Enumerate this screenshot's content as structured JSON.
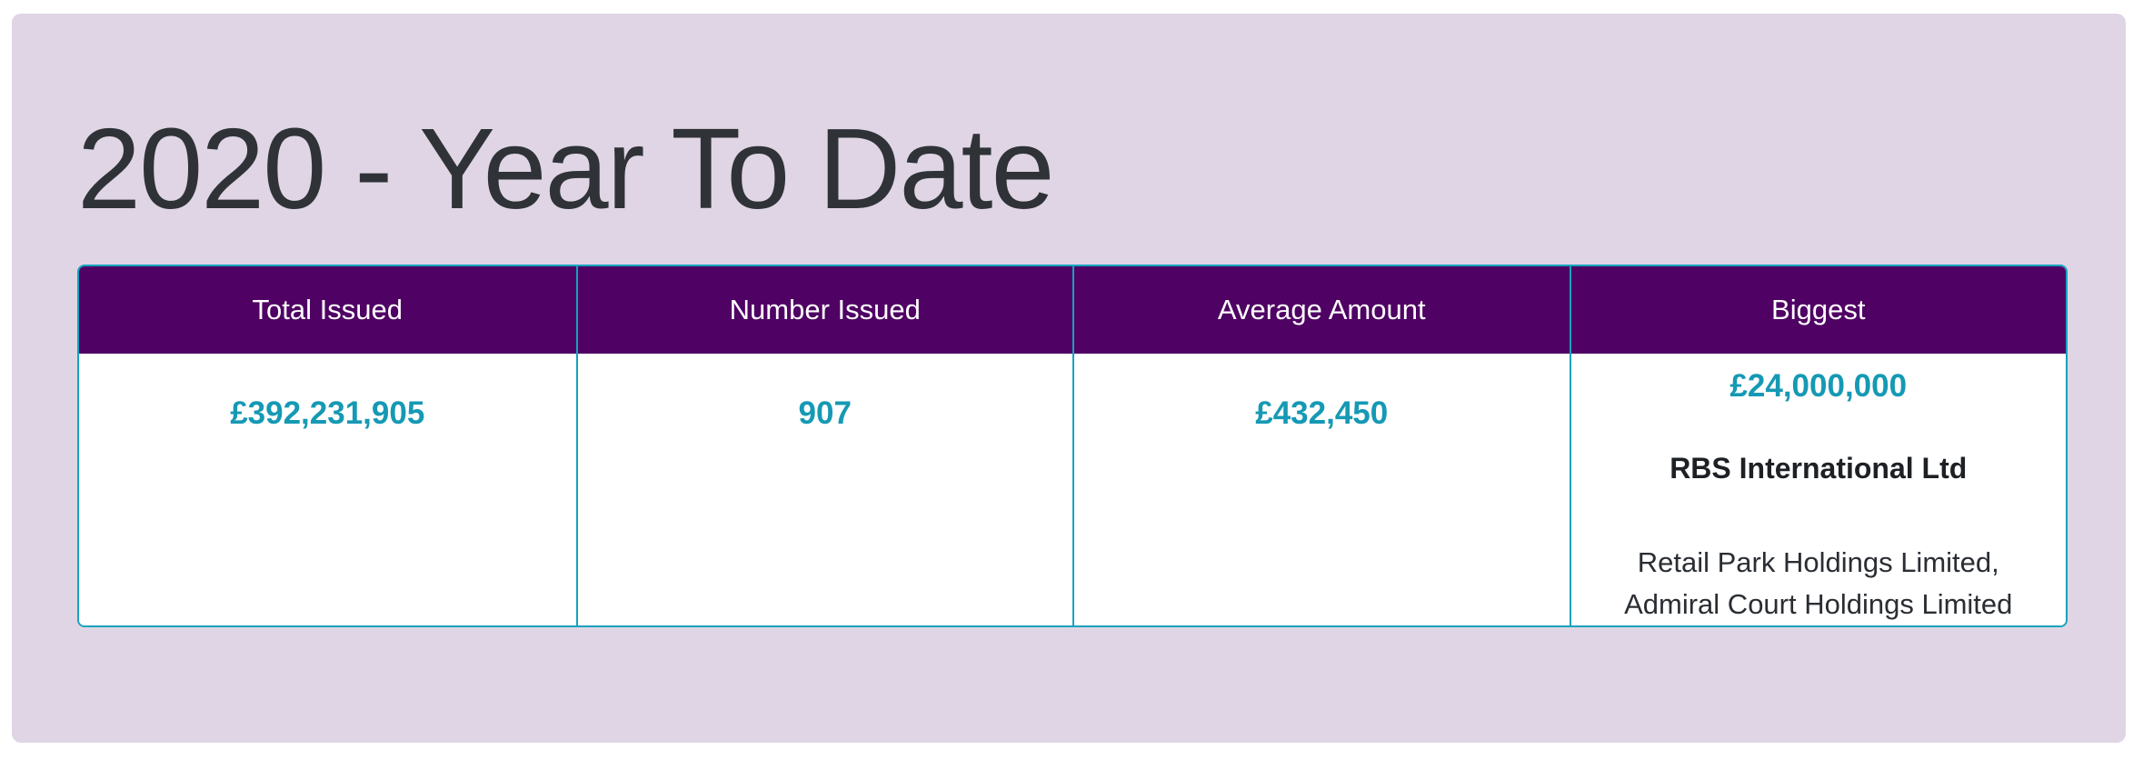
{
  "card": {
    "title": "2020 - Year To Date"
  },
  "summary_table": {
    "headers": [
      "Total Issued",
      "Number Issued",
      "Average Amount",
      "Biggest"
    ],
    "total_issued": "£392,231,905",
    "number_issued": "907",
    "average_amount": "£432,450",
    "biggest": {
      "amount": "£24,000,000",
      "issuer": "RBS International Ltd",
      "related": "Retail Park Holdings Limited, Admiral Court Holdings Limited"
    }
  },
  "colors": {
    "card_background": "#e0d5e4",
    "table_header_background": "#4f0164",
    "table_border": "#14a3bf",
    "value_text": "#1599b4",
    "title_text": "#2f3338",
    "header_text": "#ffffff"
  }
}
